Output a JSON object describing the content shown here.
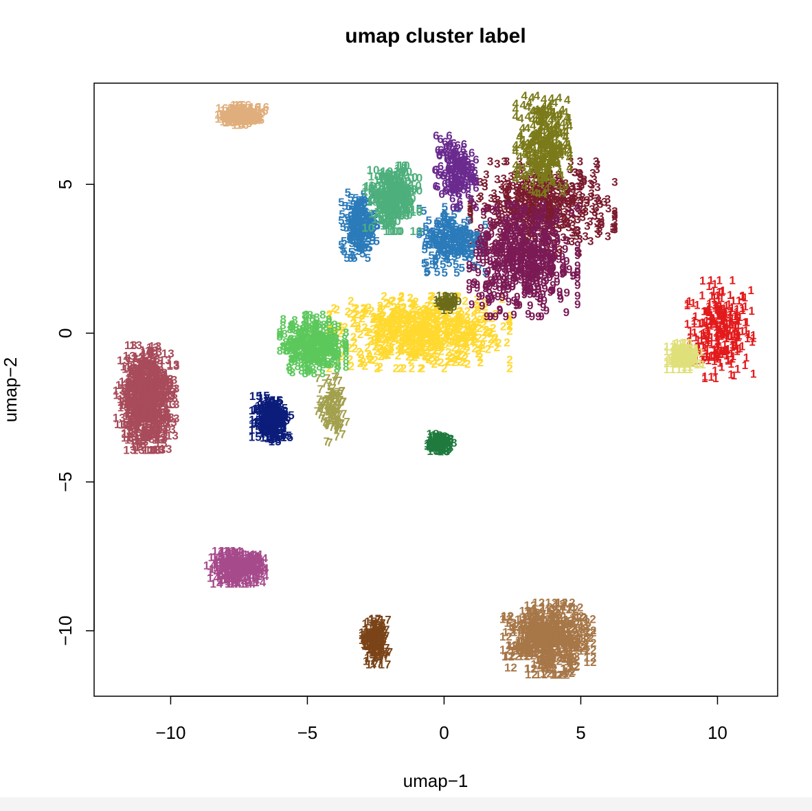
{
  "chart_data": {
    "type": "scatter",
    "title": "umap cluster label",
    "xlabel": "umap−1",
    "ylabel": "umap−2",
    "xlim": [
      -12.8,
      12.2
    ],
    "ylim": [
      -12.2,
      8.4
    ],
    "xticks": [
      -10,
      -5,
      0,
      5,
      10
    ],
    "xtick_labels": [
      "−10",
      "−5",
      "0",
      "5",
      "10"
    ],
    "yticks": [
      -10,
      -5,
      0,
      5
    ],
    "ytick_labels": [
      "−10",
      "−5",
      "0",
      "5"
    ],
    "grid": false,
    "legend": "none",
    "clusters": [
      {
        "label": "1",
        "color": "#E31A1C",
        "cx": 10.1,
        "cy": 0.0,
        "sx": 0.55,
        "sy": 0.75,
        "n": 260
      },
      {
        "label": "2",
        "color": "#FFD92F",
        "cx": -0.9,
        "cy": -0.1,
        "sx": 1.5,
        "sy": 0.55,
        "n": 620
      },
      {
        "label": "3",
        "color": "#7B1B2E",
        "cx": 3.6,
        "cy": 4.1,
        "sx": 1.2,
        "sy": 0.7,
        "n": 480
      },
      {
        "label": "4",
        "color": "#7A7A1A",
        "cx": 3.6,
        "cy": 6.2,
        "sx": 0.45,
        "sy": 0.75,
        "n": 300
      },
      {
        "label": "5",
        "color": "#2B7BBA",
        "cx": 0.3,
        "cy": 3.0,
        "sx": 0.55,
        "sy": 0.5,
        "n": 220
      },
      {
        "label": "5",
        "color": "#2B7BBA",
        "cx": -3.1,
        "cy": 3.5,
        "sx": 0.3,
        "sy": 0.5,
        "n": 180
      },
      {
        "label": "6",
        "color": "#6A2A8E",
        "cx": 0.4,
        "cy": 5.3,
        "sx": 0.35,
        "sy": 0.55,
        "n": 160
      },
      {
        "label": "7",
        "color": "#A3A04E",
        "cx": -4.1,
        "cy": -2.7,
        "sx": 0.25,
        "sy": 0.5,
        "n": 120
      },
      {
        "label": "8",
        "color": "#5CC85C",
        "cx": -4.8,
        "cy": -0.5,
        "sx": 0.55,
        "sy": 0.45,
        "n": 300
      },
      {
        "label": "9",
        "color": "#7B1A55",
        "cx": 2.9,
        "cy": 2.3,
        "sx": 0.9,
        "sy": 0.85,
        "n": 480
      },
      {
        "label": "10",
        "color": "#4DAF7C",
        "cx": -1.9,
        "cy": 4.4,
        "sx": 0.4,
        "sy": 0.5,
        "n": 180
      },
      {
        "label": "11",
        "color": "#E0E07A",
        "cx": 8.8,
        "cy": -0.9,
        "sx": 0.25,
        "sy": 0.2,
        "n": 90
      },
      {
        "label": "12",
        "color": "#A77748",
        "cx": 3.8,
        "cy": -10.4,
        "sx": 0.7,
        "sy": 0.55,
        "n": 320
      },
      {
        "label": "13",
        "color": "#A84B5A",
        "cx": -10.9,
        "cy": -2.3,
        "sx": 0.45,
        "sy": 0.8,
        "n": 400
      },
      {
        "label": "14",
        "color": "#A64A8C",
        "cx": -7.6,
        "cy": -8.0,
        "sx": 0.45,
        "sy": 0.25,
        "n": 160
      },
      {
        "label": "15",
        "color": "#0B1C7A",
        "cx": -6.3,
        "cy": -3.0,
        "sx": 0.28,
        "sy": 0.35,
        "n": 140
      },
      {
        "label": "16",
        "color": "#E0AE7C",
        "cx": -7.4,
        "cy": 7.2,
        "sx": 0.35,
        "sy": 0.15,
        "n": 110
      },
      {
        "label": "17",
        "color": "#7A4418",
        "cx": -2.5,
        "cy": -10.5,
        "sx": 0.18,
        "sy": 0.35,
        "n": 90
      },
      {
        "label": "18",
        "color": "#1F7A3E",
        "cx": -0.2,
        "cy": -3.8,
        "sx": 0.2,
        "sy": 0.15,
        "n": 50
      },
      {
        "label": "19",
        "color": "#6B6B1A",
        "cx": 0.1,
        "cy": 0.9,
        "sx": 0.15,
        "sy": 0.12,
        "n": 25
      }
    ]
  }
}
